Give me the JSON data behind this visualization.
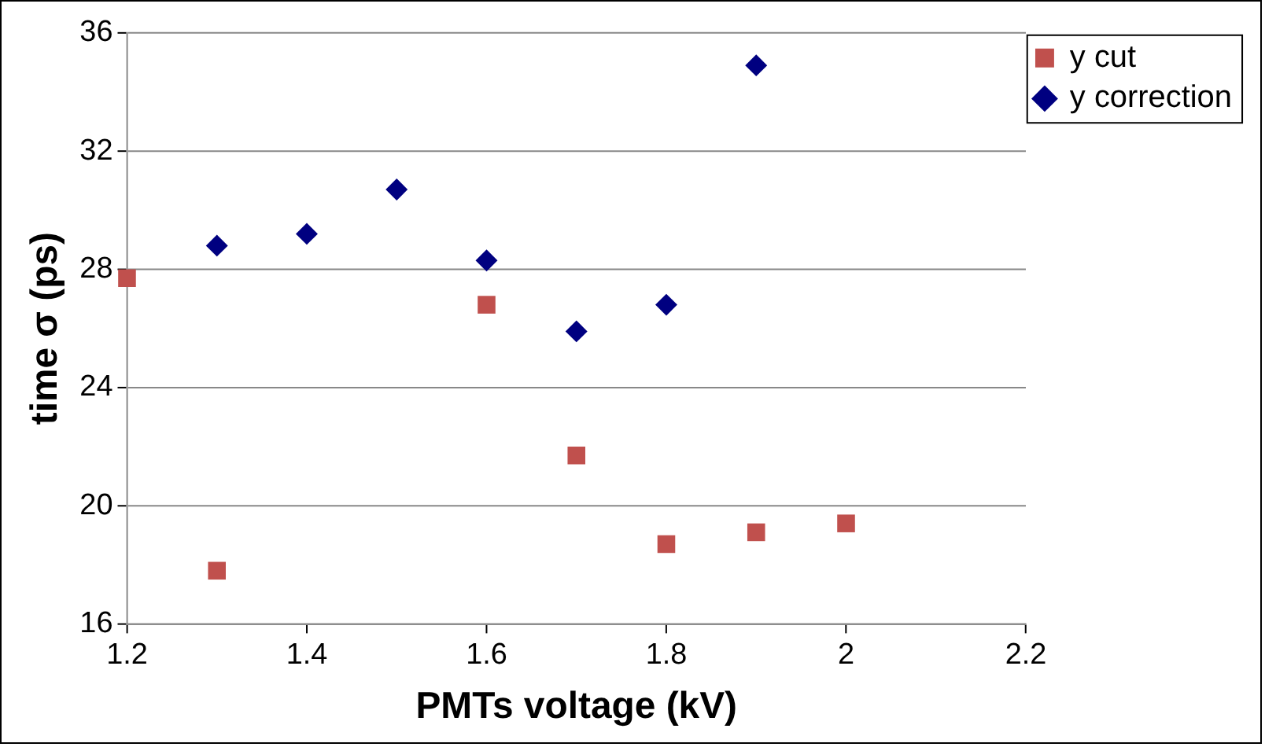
{
  "chart_data": {
    "type": "scatter",
    "xlabel": "PMTs voltage (kV)",
    "ylabel": "time σ (ps)",
    "xlim": [
      1.2,
      2.2
    ],
    "xticks": [
      1.2,
      1.4,
      1.6,
      1.8,
      2,
      2.2
    ],
    "ylim": [
      16,
      36
    ],
    "yticks": [
      16,
      20,
      24,
      28,
      32,
      36
    ],
    "grid": "y",
    "legend": "top right",
    "series": [
      {
        "name": "y cut",
        "color": "#c0504d",
        "marker": "square",
        "x": [
          1.2,
          1.3,
          1.6,
          1.7,
          1.8,
          1.9,
          2.0
        ],
        "values": [
          27.7,
          17.8,
          26.8,
          21.7,
          18.7,
          19.1,
          19.4
        ]
      },
      {
        "name": "y correction",
        "color": "#000080",
        "marker": "diamond",
        "x": [
          1.3,
          1.4,
          1.5,
          1.6,
          1.7,
          1.8,
          1.9
        ],
        "values": [
          28.8,
          29.2,
          30.7,
          28.3,
          25.9,
          26.8,
          34.9
        ]
      }
    ]
  }
}
